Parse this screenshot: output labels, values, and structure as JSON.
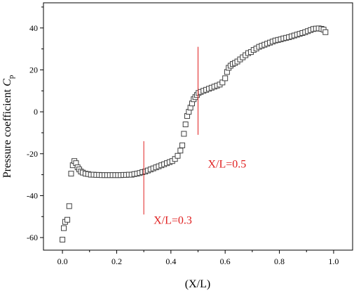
{
  "chart_data": {
    "type": "scatter",
    "title": "",
    "xlabel": "(X/L)",
    "ylabel_main": "Pressure coefficient ",
    "ylabel_var": "C",
    "ylabel_sub": "p",
    "xlim": [
      -0.07,
      1.07
    ],
    "ylim": [
      -66,
      52
    ],
    "xticks": [
      "0.0",
      "0.2",
      "0.4",
      "0.6",
      "0.8",
      "1.0"
    ],
    "yticks": [
      "-60",
      "-40",
      "-20",
      "0",
      "20",
      "40"
    ],
    "grid": false,
    "marker": "open-square",
    "marker_color": "#404040",
    "annotation_color": "#e02020",
    "annotations": [
      {
        "label": "X/L=0.3",
        "x": 0.3,
        "y_from": -49,
        "y_to": -14
      },
      {
        "label": "X/L=0.5",
        "x": 0.5,
        "y_from": -11,
        "y_to": 31
      }
    ],
    "series": [
      {
        "x": [
          0.0,
          0.005,
          0.01,
          0.018,
          0.025,
          0.032,
          0.038,
          0.044,
          0.05,
          0.056,
          0.062,
          0.068,
          0.075,
          0.085,
          0.095,
          0.105,
          0.115,
          0.125,
          0.135,
          0.145,
          0.155,
          0.165,
          0.175,
          0.185,
          0.195,
          0.205,
          0.215,
          0.225,
          0.235,
          0.245,
          0.255,
          0.265,
          0.275,
          0.285,
          0.295,
          0.305,
          0.315,
          0.325,
          0.335,
          0.345,
          0.355,
          0.365,
          0.375,
          0.385,
          0.395,
          0.405,
          0.415,
          0.425,
          0.435,
          0.442,
          0.448,
          0.454,
          0.46,
          0.466,
          0.472,
          0.478,
          0.484,
          0.49,
          0.496,
          0.502,
          0.51,
          0.52,
          0.53,
          0.54,
          0.55,
          0.56,
          0.57,
          0.58,
          0.59,
          0.6,
          0.607,
          0.613,
          0.62,
          0.628,
          0.636,
          0.645,
          0.655,
          0.665,
          0.675,
          0.685,
          0.695,
          0.705,
          0.715,
          0.725,
          0.735,
          0.745,
          0.755,
          0.765,
          0.775,
          0.785,
          0.795,
          0.805,
          0.815,
          0.825,
          0.835,
          0.845,
          0.855,
          0.865,
          0.875,
          0.885,
          0.895,
          0.905,
          0.915,
          0.925,
          0.935,
          0.945,
          0.955,
          0.963,
          0.97
        ],
        "y": [
          -61,
          -55.5,
          -52.5,
          -51.5,
          -45,
          -29.5,
          -25.5,
          -23.5,
          -24.5,
          -26.5,
          -27.5,
          -28.5,
          -29,
          -29.5,
          -29.7,
          -30,
          -30,
          -30.1,
          -30.1,
          -30.2,
          -30.2,
          -30.2,
          -30.2,
          -30.2,
          -30.2,
          -30.2,
          -30.2,
          -30.1,
          -30.1,
          -30,
          -30,
          -29.7,
          -29.5,
          -29.2,
          -28.8,
          -28.5,
          -28,
          -27.5,
          -27,
          -26.5,
          -26,
          -25.5,
          -25,
          -24.5,
          -24,
          -23.5,
          -22.5,
          -21,
          -18.5,
          -16,
          -10.5,
          -6,
          -2,
          0,
          2,
          4,
          6,
          7,
          8,
          9,
          9.5,
          10,
          10.5,
          11,
          11.5,
          12,
          12.5,
          13,
          14,
          16,
          19,
          21,
          22,
          22.8,
          23.3,
          24,
          25,
          26,
          27,
          28,
          28.5,
          29.5,
          30.2,
          31,
          31.5,
          32,
          32.5,
          33,
          33.5,
          34,
          34.3,
          34.6,
          35,
          35.3,
          35.6,
          36,
          36.4,
          36.8,
          37.2,
          37.6,
          38,
          38.5,
          39,
          39.5,
          39.7,
          39.8,
          39.6,
          39.2,
          38
        ]
      }
    ]
  }
}
